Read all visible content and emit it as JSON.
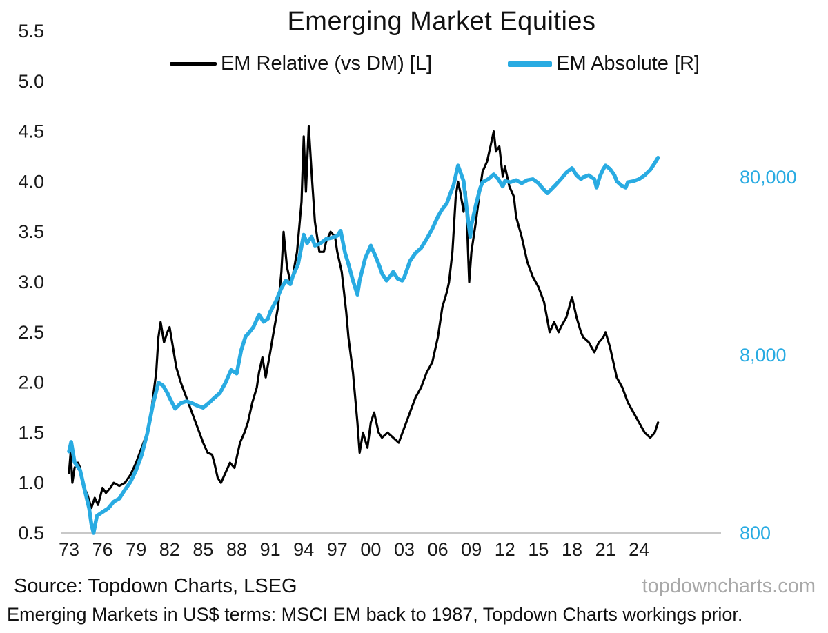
{
  "footer": {
    "source": "Source: Topdown Charts, LSEG",
    "site": "topdowncharts.com",
    "caption": "Emerging Markets in US$ terms: MSCI EM back to 1987, Topdown Charts workings prior."
  },
  "colors": {
    "em_relative": "#000000",
    "em_absolute": "#29abe2",
    "baseline": "#c8c8c8",
    "watermark": "#a9a9a9"
  },
  "chart_data": {
    "type": "line",
    "title": "Emerging Market Equities",
    "xlim": [
      1973,
      2026
    ],
    "x_ticks": [
      "73",
      "76",
      "79",
      "82",
      "85",
      "88",
      "91",
      "94",
      "97",
      "00",
      "03",
      "06",
      "09",
      "12",
      "15",
      "18",
      "21",
      "24"
    ],
    "x_tick_years": [
      1973,
      1976,
      1979,
      1982,
      1985,
      1988,
      1991,
      1994,
      1997,
      2000,
      2003,
      2006,
      2009,
      2012,
      2015,
      2018,
      2021,
      2024
    ],
    "left_axis": {
      "title": "EM Relative (vs DM)",
      "scale": "linear",
      "min": 0.5,
      "max": 5.5,
      "ticks": [
        "5.5",
        "5.0",
        "4.5",
        "4.0",
        "3.5",
        "3.0",
        "2.5",
        "2.0",
        "1.5",
        "1.0",
        "0.5"
      ]
    },
    "right_axis": {
      "title": "EM Absolute",
      "scale": "log",
      "ticks": [
        80000,
        8000,
        800
      ],
      "tick_labels": [
        "80,000",
        "8,000",
        "800"
      ],
      "color": "#29abe2"
    },
    "grid": "off",
    "legend_position": "top",
    "series": [
      {
        "id": "em-relative-line",
        "name": "EM Relative (vs DM) [L]",
        "axis": "left",
        "color": "#000000",
        "width": 3.2,
        "points": [
          [
            1973.0,
            1.1
          ],
          [
            1973.15,
            1.3
          ],
          [
            1973.3,
            1.0
          ],
          [
            1973.5,
            1.15
          ],
          [
            1973.8,
            1.2
          ],
          [
            1974.0,
            1.15
          ],
          [
            1974.3,
            0.95
          ],
          [
            1974.6,
            0.9
          ],
          [
            1975.0,
            0.75
          ],
          [
            1975.3,
            0.85
          ],
          [
            1975.6,
            0.78
          ],
          [
            1976.0,
            0.95
          ],
          [
            1976.3,
            0.9
          ],
          [
            1976.7,
            0.95
          ],
          [
            1977.0,
            1.0
          ],
          [
            1977.5,
            0.97
          ],
          [
            1978.0,
            1.0
          ],
          [
            1978.5,
            1.08
          ],
          [
            1979.0,
            1.2
          ],
          [
            1979.5,
            1.35
          ],
          [
            1980.0,
            1.5
          ],
          [
            1980.4,
            1.75
          ],
          [
            1980.8,
            2.1
          ],
          [
            1981.0,
            2.45
          ],
          [
            1981.2,
            2.6
          ],
          [
            1981.5,
            2.4
          ],
          [
            1981.8,
            2.5
          ],
          [
            1982.0,
            2.55
          ],
          [
            1982.3,
            2.35
          ],
          [
            1982.6,
            2.15
          ],
          [
            1983.0,
            2.0
          ],
          [
            1983.5,
            1.85
          ],
          [
            1984.0,
            1.7
          ],
          [
            1984.5,
            1.55
          ],
          [
            1985.0,
            1.4
          ],
          [
            1985.4,
            1.3
          ],
          [
            1985.8,
            1.28
          ],
          [
            1986.0,
            1.2
          ],
          [
            1986.3,
            1.05
          ],
          [
            1986.6,
            1.0
          ],
          [
            1987.0,
            1.1
          ],
          [
            1987.4,
            1.2
          ],
          [
            1987.8,
            1.15
          ],
          [
            1988.0,
            1.25
          ],
          [
            1988.3,
            1.4
          ],
          [
            1988.7,
            1.5
          ],
          [
            1989.0,
            1.6
          ],
          [
            1989.4,
            1.8
          ],
          [
            1989.8,
            1.95
          ],
          [
            1990.0,
            2.1
          ],
          [
            1990.3,
            2.25
          ],
          [
            1990.6,
            2.05
          ],
          [
            1991.0,
            2.3
          ],
          [
            1991.3,
            2.5
          ],
          [
            1991.7,
            2.75
          ],
          [
            1992.0,
            3.1
          ],
          [
            1992.2,
            3.5
          ],
          [
            1992.5,
            3.15
          ],
          [
            1992.8,
            3.0
          ],
          [
            1993.0,
            3.05
          ],
          [
            1993.4,
            3.3
          ],
          [
            1993.8,
            3.8
          ],
          [
            1994.0,
            4.45
          ],
          [
            1994.2,
            3.9
          ],
          [
            1994.45,
            4.55
          ],
          [
            1994.7,
            4.1
          ],
          [
            1995.0,
            3.6
          ],
          [
            1995.4,
            3.3
          ],
          [
            1995.8,
            3.3
          ],
          [
            1996.0,
            3.4
          ],
          [
            1996.4,
            3.5
          ],
          [
            1996.8,
            3.45
          ],
          [
            1997.0,
            3.3
          ],
          [
            1997.4,
            3.1
          ],
          [
            1997.8,
            2.7
          ],
          [
            1998.0,
            2.45
          ],
          [
            1998.4,
            2.1
          ],
          [
            1998.8,
            1.6
          ],
          [
            1999.0,
            1.3
          ],
          [
            1999.3,
            1.5
          ],
          [
            1999.7,
            1.35
          ],
          [
            2000.0,
            1.6
          ],
          [
            2000.3,
            1.7
          ],
          [
            2000.7,
            1.5
          ],
          [
            2001.0,
            1.45
          ],
          [
            2001.5,
            1.5
          ],
          [
            2002.0,
            1.45
          ],
          [
            2002.5,
            1.4
          ],
          [
            2003.0,
            1.55
          ],
          [
            2003.5,
            1.7
          ],
          [
            2004.0,
            1.85
          ],
          [
            2004.5,
            1.95
          ],
          [
            2005.0,
            2.1
          ],
          [
            2005.5,
            2.2
          ],
          [
            2006.0,
            2.45
          ],
          [
            2006.4,
            2.75
          ],
          [
            2006.8,
            2.9
          ],
          [
            2007.0,
            3.0
          ],
          [
            2007.3,
            3.3
          ],
          [
            2007.6,
            3.85
          ],
          [
            2007.8,
            4.0
          ],
          [
            2008.0,
            3.9
          ],
          [
            2008.3,
            3.7
          ],
          [
            2008.5,
            3.9
          ],
          [
            2008.8,
            3.0
          ],
          [
            2009.0,
            3.3
          ],
          [
            2009.4,
            3.6
          ],
          [
            2009.8,
            3.95
          ],
          [
            2010.0,
            4.1
          ],
          [
            2010.4,
            4.2
          ],
          [
            2010.8,
            4.4
          ],
          [
            2011.0,
            4.5
          ],
          [
            2011.2,
            4.3
          ],
          [
            2011.5,
            4.35
          ],
          [
            2011.8,
            4.05
          ],
          [
            2012.0,
            4.15
          ],
          [
            2012.4,
            3.95
          ],
          [
            2012.8,
            3.85
          ],
          [
            2013.0,
            3.65
          ],
          [
            2013.5,
            3.45
          ],
          [
            2014.0,
            3.2
          ],
          [
            2014.5,
            3.05
          ],
          [
            2015.0,
            2.95
          ],
          [
            2015.5,
            2.8
          ],
          [
            2016.0,
            2.5
          ],
          [
            2016.4,
            2.6
          ],
          [
            2016.8,
            2.5
          ],
          [
            2017.0,
            2.55
          ],
          [
            2017.5,
            2.65
          ],
          [
            2018.0,
            2.85
          ],
          [
            2018.4,
            2.65
          ],
          [
            2018.8,
            2.5
          ],
          [
            2019.0,
            2.45
          ],
          [
            2019.5,
            2.4
          ],
          [
            2020.0,
            2.3
          ],
          [
            2020.4,
            2.4
          ],
          [
            2020.8,
            2.45
          ],
          [
            2021.0,
            2.5
          ],
          [
            2021.4,
            2.35
          ],
          [
            2021.8,
            2.15
          ],
          [
            2022.0,
            2.05
          ],
          [
            2022.5,
            1.95
          ],
          [
            2023.0,
            1.8
          ],
          [
            2023.5,
            1.7
          ],
          [
            2024.0,
            1.6
          ],
          [
            2024.5,
            1.5
          ],
          [
            2025.0,
            1.45
          ],
          [
            2025.4,
            1.5
          ],
          [
            2025.7,
            1.6
          ]
        ]
      },
      {
        "id": "em-absolute-line",
        "name": "EM Absolute [R]",
        "axis": "right",
        "color": "#29abe2",
        "width": 5.5,
        "points": [
          [
            1973.0,
            2300
          ],
          [
            1973.2,
            2600
          ],
          [
            1973.5,
            2000
          ],
          [
            1974.0,
            1800
          ],
          [
            1974.4,
            1400
          ],
          [
            1974.8,
            1100
          ],
          [
            1975.0,
            900
          ],
          [
            1975.2,
            800
          ],
          [
            1975.5,
            1000
          ],
          [
            1976.0,
            1050
          ],
          [
            1976.5,
            1100
          ],
          [
            1977.0,
            1200
          ],
          [
            1977.5,
            1250
          ],
          [
            1978.0,
            1400
          ],
          [
            1978.5,
            1550
          ],
          [
            1979.0,
            1800
          ],
          [
            1979.5,
            2200
          ],
          [
            1980.0,
            2900
          ],
          [
            1980.5,
            4200
          ],
          [
            1981.0,
            5600
          ],
          [
            1981.4,
            5400
          ],
          [
            1981.8,
            4900
          ],
          [
            1982.0,
            4600
          ],
          [
            1982.5,
            4000
          ],
          [
            1983.0,
            4300
          ],
          [
            1983.5,
            4400
          ],
          [
            1984.0,
            4300
          ],
          [
            1984.5,
            4150
          ],
          [
            1985.0,
            4050
          ],
          [
            1985.5,
            4300
          ],
          [
            1986.0,
            4600
          ],
          [
            1986.5,
            4900
          ],
          [
            1987.0,
            5600
          ],
          [
            1987.5,
            6600
          ],
          [
            1988.0,
            6300
          ],
          [
            1988.4,
            8500
          ],
          [
            1988.8,
            10200
          ],
          [
            1989.0,
            10500
          ],
          [
            1989.5,
            11500
          ],
          [
            1990.0,
            13500
          ],
          [
            1990.4,
            12300
          ],
          [
            1990.8,
            12800
          ],
          [
            1991.0,
            14000
          ],
          [
            1991.5,
            16000
          ],
          [
            1992.0,
            19000
          ],
          [
            1992.4,
            21000
          ],
          [
            1992.8,
            20000
          ],
          [
            1993.0,
            22000
          ],
          [
            1993.5,
            26000
          ],
          [
            1994.0,
            38000
          ],
          [
            1994.3,
            34000
          ],
          [
            1994.7,
            37000
          ],
          [
            1995.0,
            33000
          ],
          [
            1995.5,
            34000
          ],
          [
            1996.0,
            36000
          ],
          [
            1996.5,
            36500
          ],
          [
            1997.0,
            37500
          ],
          [
            1997.3,
            40000
          ],
          [
            1997.7,
            30000
          ],
          [
            1998.0,
            26000
          ],
          [
            1998.4,
            21000
          ],
          [
            1998.8,
            17500
          ],
          [
            1999.0,
            21000
          ],
          [
            1999.5,
            28000
          ],
          [
            2000.0,
            33000
          ],
          [
            2000.4,
            29000
          ],
          [
            2000.8,
            25000
          ],
          [
            2001.0,
            23000
          ],
          [
            2001.4,
            21000
          ],
          [
            2001.8,
            22500
          ],
          [
            2002.0,
            23500
          ],
          [
            2002.4,
            21500
          ],
          [
            2002.8,
            21000
          ],
          [
            2003.0,
            22000
          ],
          [
            2003.5,
            27000
          ],
          [
            2004.0,
            30000
          ],
          [
            2004.5,
            32000
          ],
          [
            2005.0,
            36000
          ],
          [
            2005.5,
            41000
          ],
          [
            2006.0,
            48000
          ],
          [
            2006.4,
            53000
          ],
          [
            2006.8,
            57000
          ],
          [
            2007.0,
            62000
          ],
          [
            2007.4,
            72000
          ],
          [
            2007.8,
            93000
          ],
          [
            2008.0,
            86000
          ],
          [
            2008.3,
            76000
          ],
          [
            2008.6,
            52000
          ],
          [
            2008.9,
            37000
          ],
          [
            2009.0,
            43000
          ],
          [
            2009.4,
            56000
          ],
          [
            2009.8,
            70000
          ],
          [
            2010.0,
            75000
          ],
          [
            2010.5,
            78000
          ],
          [
            2011.0,
            83000
          ],
          [
            2011.4,
            78000
          ],
          [
            2011.8,
            71000
          ],
          [
            2012.0,
            76000
          ],
          [
            2012.5,
            75000
          ],
          [
            2013.0,
            77000
          ],
          [
            2013.5,
            74000
          ],
          [
            2014.0,
            77000
          ],
          [
            2014.5,
            78000
          ],
          [
            2015.0,
            74000
          ],
          [
            2015.4,
            69000
          ],
          [
            2015.8,
            65000
          ],
          [
            2016.0,
            67000
          ],
          [
            2016.5,
            72000
          ],
          [
            2017.0,
            78000
          ],
          [
            2017.5,
            85000
          ],
          [
            2018.0,
            90000
          ],
          [
            2018.4,
            82000
          ],
          [
            2018.8,
            78000
          ],
          [
            2019.0,
            80000
          ],
          [
            2019.5,
            82000
          ],
          [
            2020.0,
            78000
          ],
          [
            2020.2,
            70000
          ],
          [
            2020.5,
            81000
          ],
          [
            2020.8,
            89000
          ],
          [
            2021.0,
            93000
          ],
          [
            2021.4,
            89000
          ],
          [
            2021.8,
            82000
          ],
          [
            2022.0,
            76000
          ],
          [
            2022.4,
            72000
          ],
          [
            2022.8,
            70000
          ],
          [
            2023.0,
            75000
          ],
          [
            2023.5,
            76000
          ],
          [
            2024.0,
            78000
          ],
          [
            2024.5,
            82000
          ],
          [
            2025.0,
            88000
          ],
          [
            2025.4,
            96000
          ],
          [
            2025.7,
            103000
          ]
        ]
      }
    ]
  }
}
